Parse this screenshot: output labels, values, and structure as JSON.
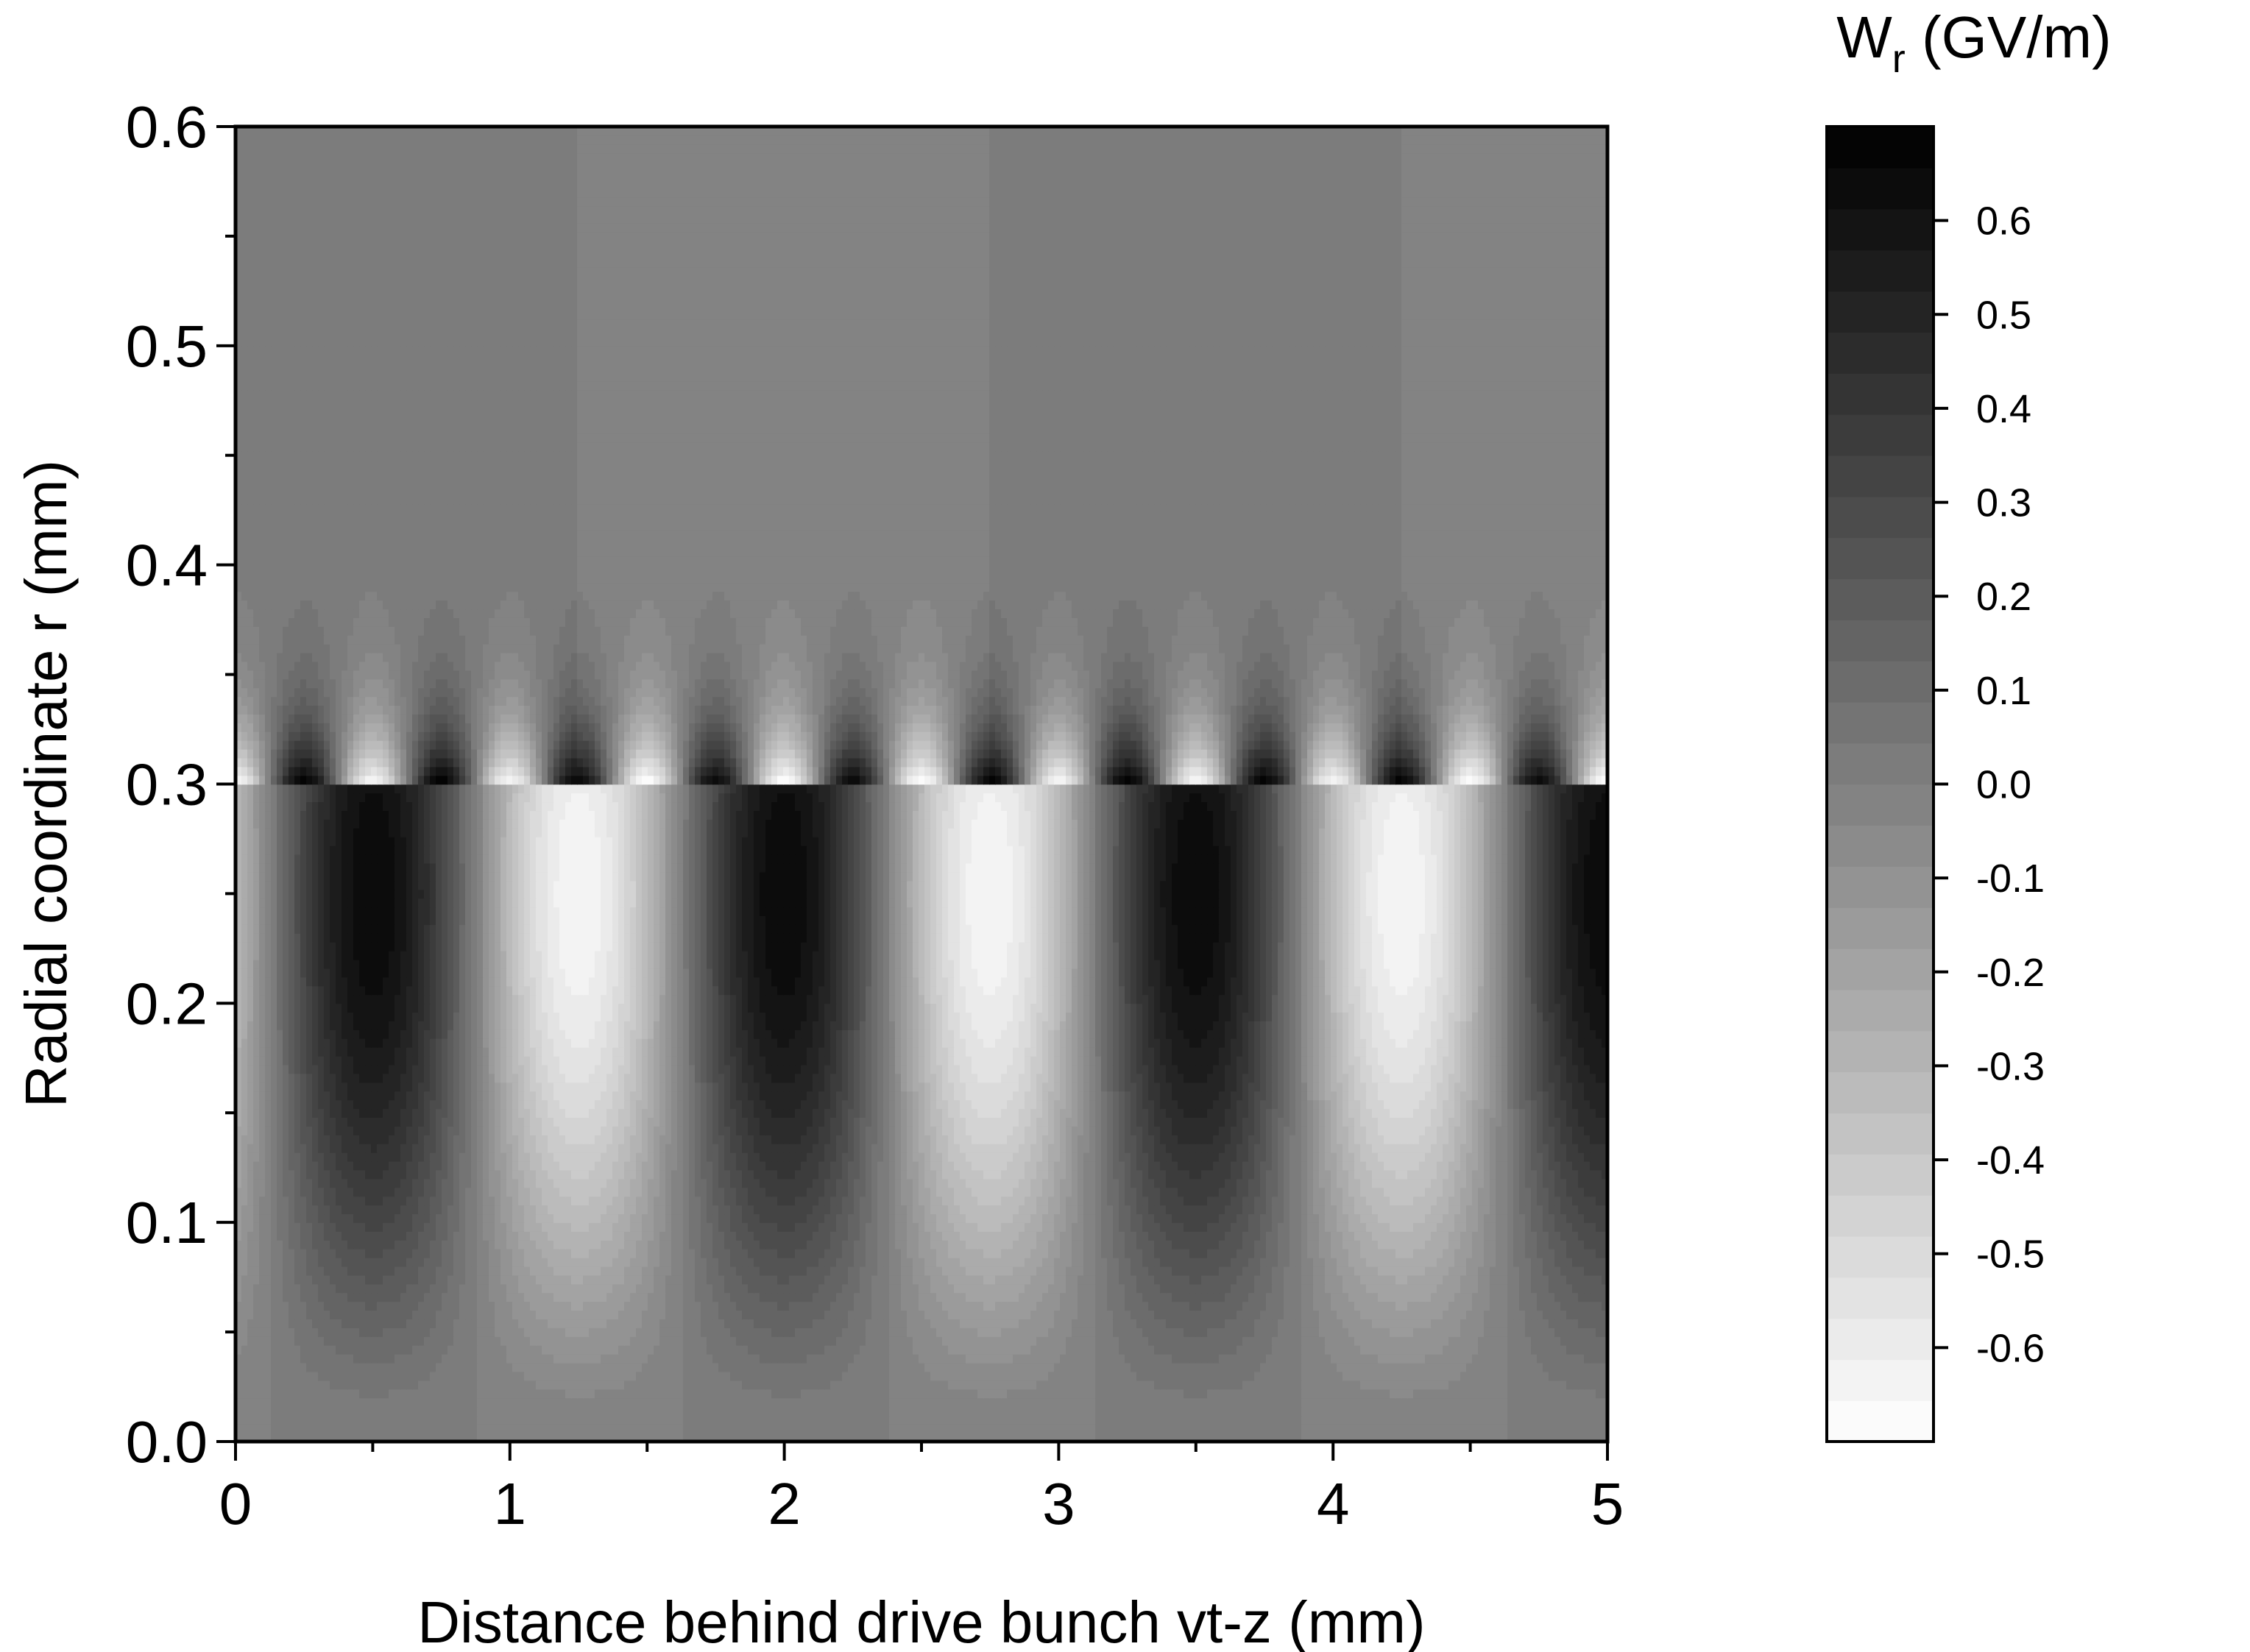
{
  "chart_data": {
    "type": "heatmap",
    "title": "",
    "xlabel": "Distance behind drive bunch vt-z (mm)",
    "ylabel": "Radial coordinate r (mm)",
    "xlim": [
      0,
      5
    ],
    "ylim": [
      0,
      0.6
    ],
    "x_ticks": [
      "0",
      "1",
      "2",
      "3",
      "4",
      "5"
    ],
    "x_tick_values": [
      0,
      1,
      2,
      3,
      4,
      5
    ],
    "y_ticks": [
      "0.0",
      "0.1",
      "0.2",
      "0.3",
      "0.4",
      "0.5",
      "0.6"
    ],
    "y_tick_values": [
      0,
      0.1,
      0.2,
      0.3,
      0.4,
      0.5,
      0.6
    ],
    "colorbar": {
      "label_main": "W",
      "label_sub": "r",
      "label_units": " (GV/m)",
      "range": [
        -0.7,
        0.7
      ],
      "levels": 32,
      "tick_values": [
        0.6,
        0.5,
        0.4,
        0.3,
        0.2,
        0.1,
        0.0,
        -0.1,
        -0.2,
        -0.3,
        -0.4,
        -0.5,
        -0.6
      ],
      "ticks": [
        "0.6",
        "0.5",
        "0.4",
        "0.3",
        "0.2",
        "0.1",
        "0.0",
        "-0.1",
        "-0.2",
        "-0.3",
        "-0.4",
        "-0.5",
        "-0.6"
      ],
      "colormap": "gray, white = negative, black = positive"
    },
    "field_features": {
      "interface_r": 0.3,
      "inner_peak_r": 0.25,
      "inner_peak_value": 0.65,
      "inner_min_value": -0.6,
      "inner_period": 1.5,
      "inner_first_max_x": 0.5,
      "inner_first_min_x": 1.25,
      "outer_period": 0.5,
      "outer_peak_value": 0.7,
      "outer_extent_r": 0.41
    },
    "grid": false,
    "legend": "colorbar right"
  }
}
